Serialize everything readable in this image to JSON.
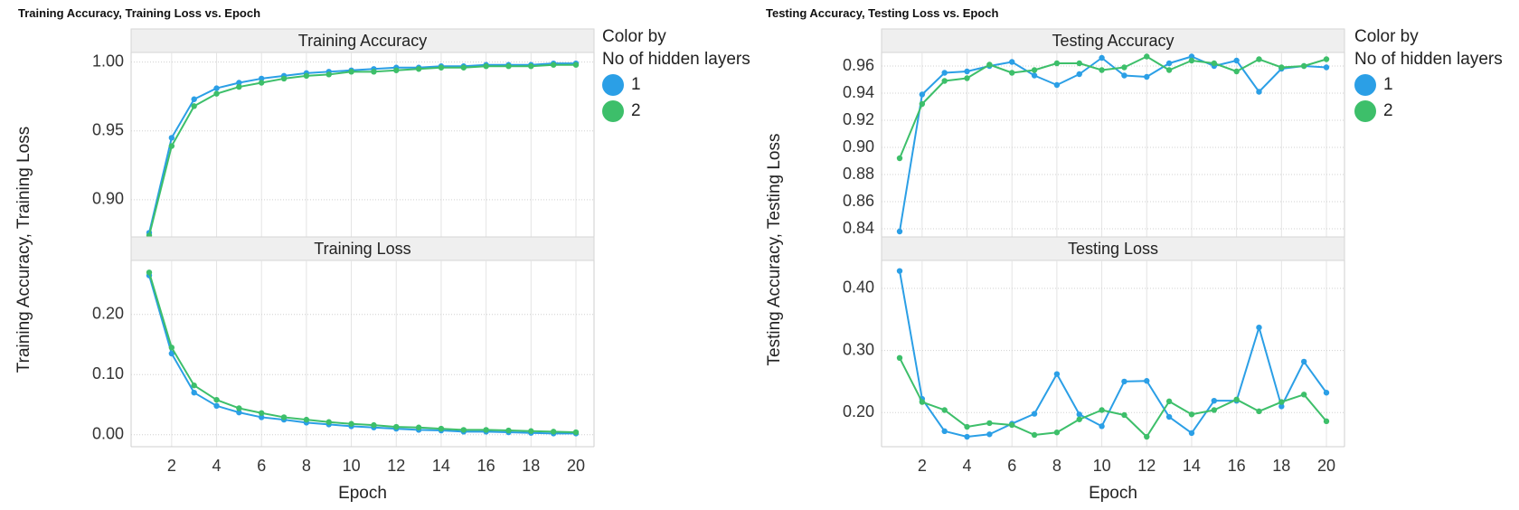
{
  "dashboards": [
    {
      "title": "Training Accuracy, Training Loss vs. Epoch",
      "ylabel": "Training Accuracy, Training Loss",
      "legend": {
        "title_line1": "Color by",
        "title_line2": "No of hidden layers",
        "items": [
          {
            "label": "1",
            "color": "#2b9fe6"
          },
          {
            "label": "2",
            "color": "#3dbf6a"
          }
        ]
      }
    },
    {
      "title": "Testing Accuracy, Testing Loss vs. Epoch",
      "ylabel": "Testing Accuracy, Testing Loss",
      "legend": {
        "title_line1": "Color by",
        "title_line2": "No of hidden layers",
        "items": [
          {
            "label": "1",
            "color": "#2b9fe6"
          },
          {
            "label": "2",
            "color": "#3dbf6a"
          }
        ]
      }
    }
  ],
  "chart_data": [
    {
      "type": "line",
      "title": "Training Accuracy",
      "xlabel": "",
      "ylabel": "Training Accuracy, Training Loss",
      "x": [
        1,
        2,
        3,
        4,
        5,
        6,
        7,
        8,
        9,
        10,
        11,
        12,
        13,
        14,
        15,
        16,
        17,
        18,
        19,
        20
      ],
      "ylim": [
        0.873,
        1.007
      ],
      "yticks": [
        0.9,
        0.95,
        1.0
      ],
      "yticklabels": [
        "0.90",
        "0.95",
        "1.00"
      ],
      "series": [
        {
          "name": "1",
          "color": "#2b9fe6",
          "values": [
            0.876,
            0.945,
            0.973,
            0.981,
            0.985,
            0.988,
            0.99,
            0.992,
            0.993,
            0.994,
            0.995,
            0.996,
            0.996,
            0.997,
            0.997,
            0.998,
            0.998,
            0.998,
            0.999,
            0.999
          ]
        },
        {
          "name": "2",
          "color": "#3dbf6a",
          "values": [
            0.874,
            0.939,
            0.968,
            0.977,
            0.982,
            0.985,
            0.988,
            0.99,
            0.991,
            0.993,
            0.993,
            0.994,
            0.995,
            0.996,
            0.996,
            0.997,
            0.997,
            0.997,
            0.998,
            0.998
          ]
        }
      ]
    },
    {
      "type": "line",
      "title": "Training Loss",
      "xlabel": "Epoch",
      "ylabel": "Training Accuracy, Training Loss",
      "x": [
        1,
        2,
        3,
        4,
        5,
        6,
        7,
        8,
        9,
        10,
        11,
        12,
        13,
        14,
        15,
        16,
        17,
        18,
        19,
        20
      ],
      "ylim": [
        -0.02,
        0.29
      ],
      "xticks": [
        2,
        4,
        6,
        8,
        10,
        12,
        14,
        16,
        18,
        20
      ],
      "xticklabels": [
        "2",
        "4",
        "6",
        "8",
        "10",
        "12",
        "14",
        "16",
        "18",
        "20"
      ],
      "yticks": [
        0.0,
        0.1,
        0.2
      ],
      "yticklabels": [
        "0.00",
        "0.10",
        "0.20"
      ],
      "series": [
        {
          "name": "1",
          "color": "#2b9fe6",
          "values": [
            0.265,
            0.135,
            0.07,
            0.048,
            0.037,
            0.029,
            0.025,
            0.02,
            0.017,
            0.014,
            0.012,
            0.01,
            0.008,
            0.007,
            0.005,
            0.005,
            0.004,
            0.003,
            0.002,
            0.002
          ]
        },
        {
          "name": "2",
          "color": "#3dbf6a",
          "values": [
            0.27,
            0.145,
            0.082,
            0.058,
            0.044,
            0.036,
            0.029,
            0.025,
            0.021,
            0.018,
            0.016,
            0.013,
            0.012,
            0.01,
            0.008,
            0.008,
            0.007,
            0.006,
            0.005,
            0.004
          ]
        }
      ]
    },
    {
      "type": "line",
      "title": "Testing Accuracy",
      "xlabel": "",
      "ylabel": "Testing Accuracy, Testing Loss",
      "x": [
        1,
        2,
        3,
        4,
        5,
        6,
        7,
        8,
        9,
        10,
        11,
        12,
        13,
        14,
        15,
        16,
        17,
        18,
        19,
        20
      ],
      "ylim": [
        0.834,
        0.97
      ],
      "yticks": [
        0.84,
        0.86,
        0.88,
        0.9,
        0.92,
        0.94,
        0.96
      ],
      "yticklabels": [
        "0.84",
        "0.86",
        "0.88",
        "0.90",
        "0.92",
        "0.94",
        "0.96"
      ],
      "series": [
        {
          "name": "1",
          "color": "#2b9fe6",
          "values": [
            0.838,
            0.939,
            0.955,
            0.956,
            0.96,
            0.963,
            0.953,
            0.946,
            0.954,
            0.966,
            0.953,
            0.952,
            0.962,
            0.967,
            0.96,
            0.964,
            0.941,
            0.958,
            0.96,
            0.959
          ]
        },
        {
          "name": "2",
          "color": "#3dbf6a",
          "values": [
            0.892,
            0.932,
            0.949,
            0.951,
            0.961,
            0.955,
            0.957,
            0.962,
            0.962,
            0.957,
            0.959,
            0.967,
            0.957,
            0.964,
            0.962,
            0.956,
            0.965,
            0.959,
            0.96,
            0.965
          ]
        }
      ]
    },
    {
      "type": "line",
      "title": "Testing Loss",
      "xlabel": "Epoch",
      "ylabel": "Testing Accuracy, Testing Loss",
      "x": [
        1,
        2,
        3,
        4,
        5,
        6,
        7,
        8,
        9,
        10,
        11,
        12,
        13,
        14,
        15,
        16,
        17,
        18,
        19,
        20
      ],
      "ylim": [
        0.145,
        0.445
      ],
      "xticks": [
        2,
        4,
        6,
        8,
        10,
        12,
        14,
        16,
        18,
        20
      ],
      "xticklabels": [
        "2",
        "4",
        "6",
        "8",
        "10",
        "12",
        "14",
        "16",
        "18",
        "20"
      ],
      "yticks": [
        0.2,
        0.3,
        0.4
      ],
      "yticklabels": [
        "0.20",
        "0.30",
        "0.40"
      ],
      "series": [
        {
          "name": "1",
          "color": "#2b9fe6",
          "values": [
            0.428,
            0.222,
            0.17,
            0.161,
            0.165,
            0.182,
            0.198,
            0.262,
            0.197,
            0.178,
            0.25,
            0.251,
            0.193,
            0.167,
            0.219,
            0.219,
            0.337,
            0.21,
            0.282,
            0.232
          ]
        },
        {
          "name": "2",
          "color": "#3dbf6a",
          "values": [
            0.288,
            0.217,
            0.204,
            0.177,
            0.183,
            0.18,
            0.164,
            0.168,
            0.189,
            0.204,
            0.196,
            0.161,
            0.218,
            0.197,
            0.204,
            0.221,
            0.202,
            0.217,
            0.229,
            0.186
          ]
        }
      ]
    }
  ]
}
